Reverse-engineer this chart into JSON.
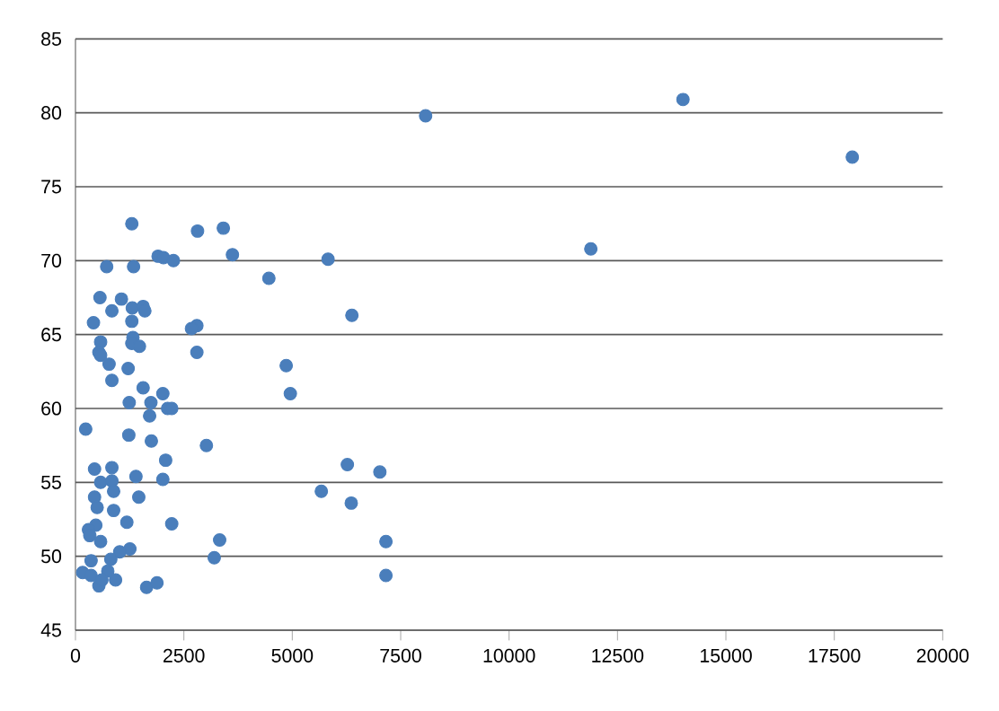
{
  "chart_data": {
    "type": "scatter",
    "color": "#4a7ebb",
    "marker": "circle",
    "grid": "y",
    "xlim": [
      0,
      20000
    ],
    "ylim": [
      45,
      85
    ],
    "xticks": [
      0,
      2500,
      5000,
      7500,
      10000,
      12500,
      15000,
      17500,
      20000
    ],
    "yticks": [
      45,
      50,
      55,
      60,
      65,
      70,
      75,
      80,
      85
    ],
    "x": [
      8075,
      14010,
      17915,
      11885,
      236,
      1230,
      1750,
      2080,
      3020,
      440,
      840,
      580,
      840,
      1395,
      2015,
      440,
      880,
      500,
      880,
      1460,
      1185,
      2220,
      470,
      300,
      330,
      580,
      3325,
      3200,
      7160,
      7160,
      5670,
      6270,
      7020,
      6360,
      1255,
      1020,
      815,
      360,
      165,
      360,
      540,
      925,
      1640,
      1880,
      745,
      610,
      1300,
      2815,
      3410,
      1905,
      2030,
      2260,
      3620,
      5825,
      720,
      1340,
      4460,
      565,
      1060,
      840,
      1310,
      1560,
      1600,
      6375,
      415,
      1300,
      2800,
      2675,
      580,
      1325,
      1300,
      1475,
      540,
      580,
      2800,
      775,
      1215,
      4860,
      840,
      1560,
      4955,
      2015,
      1240,
      1740,
      2125,
      2220,
      1710
    ],
    "values": [
      79.8,
      80.9,
      77.0,
      70.8,
      58.6,
      58.2,
      57.8,
      56.5,
      57.5,
      55.9,
      56.0,
      55.0,
      55.1,
      55.4,
      55.2,
      54.0,
      54.4,
      53.3,
      53.1,
      54.0,
      52.3,
      52.2,
      52.1,
      51.8,
      51.4,
      51.0,
      51.1,
      49.9,
      51.0,
      48.7,
      54.4,
      56.2,
      55.7,
      53.6,
      50.5,
      50.3,
      49.8,
      49.7,
      48.9,
      48.7,
      48.0,
      48.4,
      47.9,
      48.2,
      49.0,
      48.4,
      72.5,
      72.0,
      72.2,
      70.3,
      70.2,
      70.0,
      70.4,
      70.1,
      69.6,
      69.6,
      68.8,
      67.5,
      67.4,
      66.6,
      66.8,
      66.9,
      66.6,
      66.3,
      65.8,
      65.9,
      65.6,
      65.4,
      64.5,
      64.8,
      64.4,
      64.2,
      63.8,
      63.6,
      63.8,
      63.0,
      62.7,
      62.9,
      61.9,
      61.4,
      61.0,
      61.0,
      60.4,
      60.4,
      60.0,
      60.0,
      59.5
    ]
  }
}
